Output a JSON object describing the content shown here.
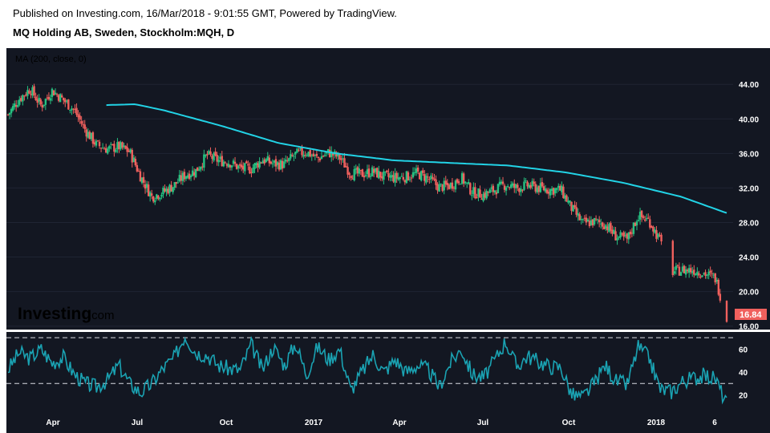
{
  "header": {
    "line1": "Published on Investing.com, 16/Mar/2018 - 9:01:55 GMT, Powered by TradingView.",
    "line2": "MQ Holding AB, Sweden, Stockholm:MQH, D"
  },
  "logo": {
    "brand": "Investing",
    "suffix": ".com"
  },
  "colors": {
    "background": "#131722",
    "up": "#26c281",
    "down": "#f0605d",
    "ma": "#22d3e6",
    "rsi": "#1aa3b3",
    "last_bg": "#f0605d"
  },
  "chart_data": [
    {
      "type": "candlestick",
      "indicator_label": "MA (200, close, 0)",
      "last_price": "16.84",
      "y_ticks": [
        "44.00",
        "40.00",
        "36.00",
        "32.00",
        "28.00",
        "24.00",
        "20.00",
        "16.00"
      ],
      "ylim": [
        15.6,
        48.2
      ],
      "x_ticks": [
        "Apr",
        "Jul",
        "Oct",
        "2017",
        "Apr",
        "Jul",
        "Oct",
        "2018",
        "6"
      ],
      "close_anchors": [
        {
          "x": 0,
          "y": 40.5
        },
        {
          "x": 2,
          "y": 42.3
        },
        {
          "x": 4,
          "y": 43.5
        },
        {
          "x": 6,
          "y": 41.5
        },
        {
          "x": 8,
          "y": 43.3
        },
        {
          "x": 10,
          "y": 42.2
        },
        {
          "x": 12,
          "y": 41.0
        },
        {
          "x": 14,
          "y": 38.7
        },
        {
          "x": 16,
          "y": 37.0
        },
        {
          "x": 18,
          "y": 36.5
        },
        {
          "x": 20,
          "y": 36.8
        },
        {
          "x": 22,
          "y": 36.2
        },
        {
          "x": 24,
          "y": 33.3
        },
        {
          "x": 26,
          "y": 31.0
        },
        {
          "x": 28,
          "y": 31.5
        },
        {
          "x": 30,
          "y": 32.3
        },
        {
          "x": 32,
          "y": 33.5
        },
        {
          "x": 34,
          "y": 34.0
        },
        {
          "x": 36,
          "y": 35.8
        },
        {
          "x": 38,
          "y": 35.2
        },
        {
          "x": 40,
          "y": 35.0
        },
        {
          "x": 42,
          "y": 34.3
        },
        {
          "x": 44,
          "y": 34.2
        },
        {
          "x": 46,
          "y": 35.3
        },
        {
          "x": 48,
          "y": 34.8
        },
        {
          "x": 50,
          "y": 34.7
        },
        {
          "x": 52,
          "y": 35.9
        },
        {
          "x": 54,
          "y": 36.2
        },
        {
          "x": 56,
          "y": 35.4
        },
        {
          "x": 58,
          "y": 36.1
        },
        {
          "x": 60,
          "y": 35.5
        },
        {
          "x": 62,
          "y": 33.7
        },
        {
          "x": 64,
          "y": 33.6
        },
        {
          "x": 66,
          "y": 33.9
        },
        {
          "x": 68,
          "y": 33.3
        },
        {
          "x": 70,
          "y": 33.2
        },
        {
          "x": 72,
          "y": 33.3
        },
        {
          "x": 74,
          "y": 33.7
        },
        {
          "x": 76,
          "y": 33.1
        },
        {
          "x": 78,
          "y": 32.1
        },
        {
          "x": 80,
          "y": 32.3
        },
        {
          "x": 82,
          "y": 33.2
        },
        {
          "x": 84,
          "y": 31.5
        },
        {
          "x": 86,
          "y": 31.2
        },
        {
          "x": 88,
          "y": 31.8
        },
        {
          "x": 90,
          "y": 32.4
        },
        {
          "x": 92,
          "y": 32.0
        },
        {
          "x": 94,
          "y": 32.3
        },
        {
          "x": 96,
          "y": 32.0
        },
        {
          "x": 98,
          "y": 31.8
        },
        {
          "x": 100,
          "y": 31.8
        },
        {
          "x": 102,
          "y": 29.6
        },
        {
          "x": 104,
          "y": 27.9
        },
        {
          "x": 106,
          "y": 28.1
        },
        {
          "x": 108,
          "y": 27.8
        },
        {
          "x": 110,
          "y": 26.4
        },
        {
          "x": 112,
          "y": 26.0
        },
        {
          "x": 114,
          "y": 28.8
        },
        {
          "x": 116,
          "y": 28.2
        },
        {
          "x": 118,
          "y": 25.8
        },
        {
          "x": 120,
          "y": 22.3
        },
        {
          "x": 122,
          "y": 22.5
        },
        {
          "x": 124,
          "y": 22.5
        },
        {
          "x": 126,
          "y": 22.1
        },
        {
          "x": 128,
          "y": 21.5
        },
        {
          "x": 130,
          "y": 16.84
        }
      ],
      "ma_anchors": [
        {
          "x": 0,
          "y": 41.6
        },
        {
          "x": 5,
          "y": 41.7
        },
        {
          "x": 10,
          "y": 41.0
        },
        {
          "x": 20,
          "y": 39.2
        },
        {
          "x": 30,
          "y": 37.2
        },
        {
          "x": 40,
          "y": 36.0
        },
        {
          "x": 50,
          "y": 35.2
        },
        {
          "x": 60,
          "y": 34.9
        },
        {
          "x": 70,
          "y": 34.6
        },
        {
          "x": 80,
          "y": 33.8
        },
        {
          "x": 90,
          "y": 32.6
        },
        {
          "x": 100,
          "y": 31.0
        },
        {
          "x": 108,
          "y": 29.1
        }
      ],
      "ma_start": 0.148
    },
    {
      "type": "line",
      "indicator": "RSI",
      "y_ticks": [
        "60",
        "40",
        "20"
      ],
      "ylim": [
        5,
        75
      ],
      "reference_lines": [
        70,
        30
      ],
      "anchors": [
        {
          "x": 0,
          "y": 42
        },
        {
          "x": 2,
          "y": 57
        },
        {
          "x": 4,
          "y": 52
        },
        {
          "x": 6,
          "y": 60
        },
        {
          "x": 8,
          "y": 48
        },
        {
          "x": 10,
          "y": 53
        },
        {
          "x": 12,
          "y": 38
        },
        {
          "x": 14,
          "y": 30
        },
        {
          "x": 16,
          "y": 27
        },
        {
          "x": 18,
          "y": 33
        },
        {
          "x": 20,
          "y": 46
        },
        {
          "x": 22,
          "y": 30
        },
        {
          "x": 24,
          "y": 22
        },
        {
          "x": 26,
          "y": 30
        },
        {
          "x": 28,
          "y": 43
        },
        {
          "x": 30,
          "y": 52
        },
        {
          "x": 32,
          "y": 72
        },
        {
          "x": 34,
          "y": 57
        },
        {
          "x": 36,
          "y": 55
        },
        {
          "x": 38,
          "y": 46
        },
        {
          "x": 40,
          "y": 43
        },
        {
          "x": 42,
          "y": 42
        },
        {
          "x": 44,
          "y": 64
        },
        {
          "x": 46,
          "y": 42
        },
        {
          "x": 48,
          "y": 62
        },
        {
          "x": 50,
          "y": 46
        },
        {
          "x": 52,
          "y": 65
        },
        {
          "x": 54,
          "y": 38
        },
        {
          "x": 56,
          "y": 62
        },
        {
          "x": 58,
          "y": 51
        },
        {
          "x": 60,
          "y": 60
        },
        {
          "x": 62,
          "y": 24
        },
        {
          "x": 64,
          "y": 40
        },
        {
          "x": 66,
          "y": 55
        },
        {
          "x": 68,
          "y": 40
        },
        {
          "x": 70,
          "y": 51
        },
        {
          "x": 72,
          "y": 40
        },
        {
          "x": 74,
          "y": 46
        },
        {
          "x": 76,
          "y": 42
        },
        {
          "x": 78,
          "y": 27
        },
        {
          "x": 80,
          "y": 48
        },
        {
          "x": 82,
          "y": 60
        },
        {
          "x": 84,
          "y": 38
        },
        {
          "x": 86,
          "y": 35
        },
        {
          "x": 88,
          "y": 50
        },
        {
          "x": 90,
          "y": 67
        },
        {
          "x": 92,
          "y": 45
        },
        {
          "x": 94,
          "y": 54
        },
        {
          "x": 96,
          "y": 49
        },
        {
          "x": 98,
          "y": 45
        },
        {
          "x": 100,
          "y": 44
        },
        {
          "x": 102,
          "y": 20
        },
        {
          "x": 104,
          "y": 18
        },
        {
          "x": 106,
          "y": 30
        },
        {
          "x": 108,
          "y": 46
        },
        {
          "x": 110,
          "y": 32
        },
        {
          "x": 112,
          "y": 29
        },
        {
          "x": 114,
          "y": 62
        },
        {
          "x": 116,
          "y": 52
        },
        {
          "x": 118,
          "y": 25
        },
        {
          "x": 120,
          "y": 23
        },
        {
          "x": 122,
          "y": 32
        },
        {
          "x": 124,
          "y": 35
        },
        {
          "x": 126,
          "y": 37
        },
        {
          "x": 128,
          "y": 34
        },
        {
          "x": 130,
          "y": 12
        }
      ]
    }
  ]
}
